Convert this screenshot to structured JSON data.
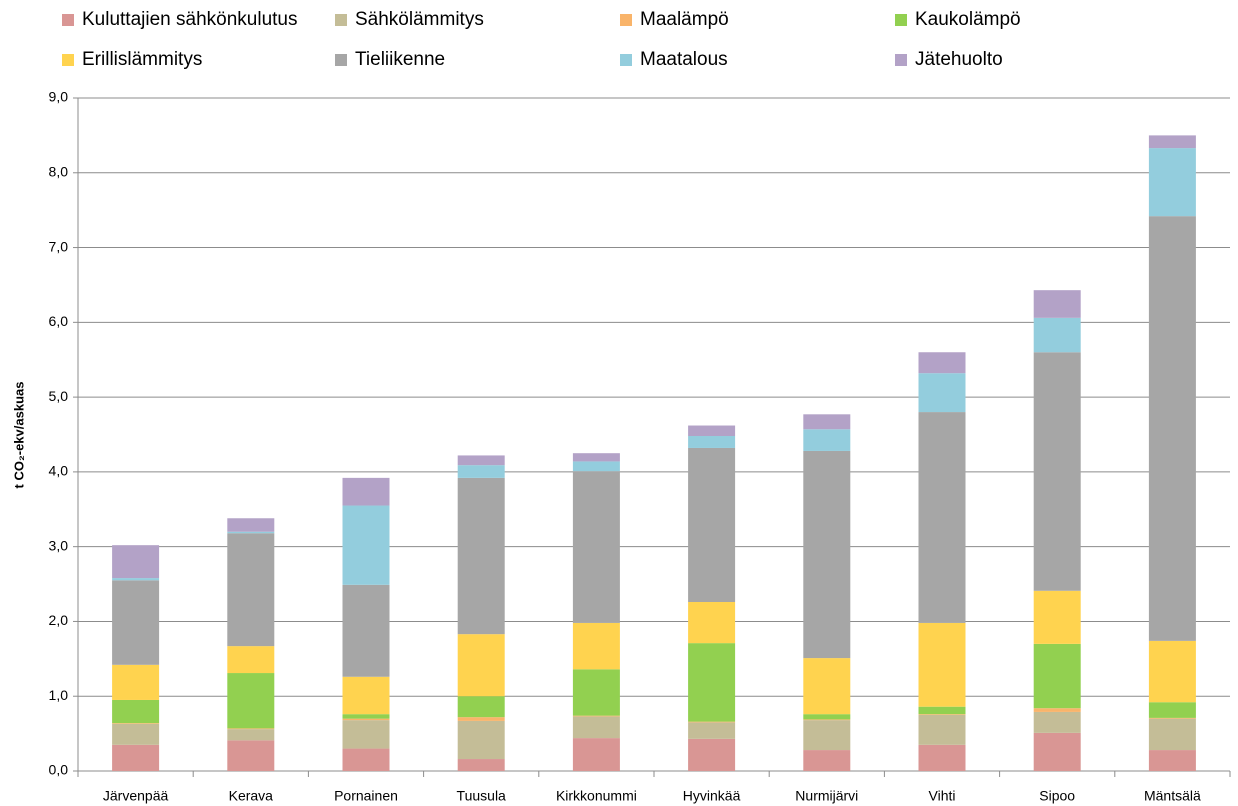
{
  "chart_data": {
    "type": "stacked_bar",
    "ylabel": "t CO₂-ekv/askuas",
    "categories": [
      "Järvenpää",
      "Kerava",
      "Pornainen",
      "Tuusula",
      "Kirkkonummi",
      "Hyvinkää",
      "Nurmijärvi",
      "Vihti",
      "Sipoo",
      "Mäntsälä"
    ],
    "series": [
      {
        "name": "Kuluttajien sähkönkulutus",
        "color": "#d99694",
        "values": [
          0.35,
          0.41,
          0.3,
          0.16,
          0.44,
          0.43,
          0.28,
          0.35,
          0.51,
          0.28
        ]
      },
      {
        "name": "Sähkölämmitys",
        "color": "#c4bd97",
        "values": [
          0.28,
          0.15,
          0.38,
          0.51,
          0.29,
          0.22,
          0.4,
          0.4,
          0.28,
          0.42
        ]
      },
      {
        "name": "Maalämpö",
        "color": "#f9b46a",
        "values": [
          0.01,
          0.01,
          0.02,
          0.05,
          0.01,
          0.01,
          0.01,
          0.01,
          0.05,
          0.01
        ]
      },
      {
        "name": "Kaukolämpö",
        "color": "#92d050",
        "values": [
          0.31,
          0.74,
          0.06,
          0.28,
          0.62,
          1.05,
          0.07,
          0.1,
          0.86,
          0.21
        ]
      },
      {
        "name": "Erillislämmitys",
        "color": "#ffd34f",
        "values": [
          0.47,
          0.36,
          0.5,
          0.83,
          0.62,
          0.55,
          0.75,
          1.12,
          0.71,
          0.82
        ]
      },
      {
        "name": "Tieliikenne",
        "color": "#a6a6a6",
        "values": [
          1.13,
          1.51,
          1.23,
          2.09,
          2.03,
          2.06,
          2.77,
          2.82,
          3.19,
          5.68
        ]
      },
      {
        "name": "Maatalous",
        "color": "#93cddd",
        "values": [
          0.03,
          0.02,
          1.06,
          0.17,
          0.13,
          0.16,
          0.29,
          0.52,
          0.46,
          0.91
        ]
      },
      {
        "name": "Jätehuolto",
        "color": "#b3a2c7",
        "values": [
          0.44,
          0.18,
          0.37,
          0.13,
          0.11,
          0.14,
          0.2,
          0.28,
          0.37,
          0.17
        ]
      }
    ],
    "ylim": [
      0,
      9
    ],
    "yticks": [
      {
        "value": 0,
        "label": "0,0"
      },
      {
        "value": 1,
        "label": "1,0"
      },
      {
        "value": 2,
        "label": "2,0"
      },
      {
        "value": 3,
        "label": "3,0"
      },
      {
        "value": 4,
        "label": "4,0"
      },
      {
        "value": 5,
        "label": "5,0"
      },
      {
        "value": 6,
        "label": "6,0"
      },
      {
        "value": 7,
        "label": "7,0"
      },
      {
        "value": 8,
        "label": "8,0"
      },
      {
        "value": 9,
        "label": "9,0"
      }
    ],
    "grid": true,
    "legend": "top"
  }
}
